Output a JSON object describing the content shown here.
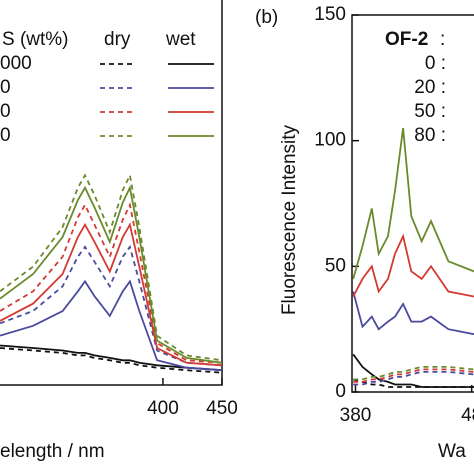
{
  "chart_data": [
    {
      "type": "line",
      "x": [
        262,
        290,
        315,
        328,
        334,
        342,
        355,
        366,
        372,
        380,
        395,
        420,
        450
      ],
      "xlim": [
        262,
        450
      ],
      "ylim": [
        0,
        150
      ],
      "xticks": [
        400,
        450
      ],
      "x_label": "elength / nm",
      "legend": {
        "header": "S (wt%)",
        "columns": [
          "dry",
          "wet"
        ],
        "rows": [
          "000",
          "0",
          "0",
          "0"
        ]
      },
      "series": [
        {
          "color": "#111111",
          "dashed": true,
          "values": [
            15,
            14,
            13,
            12,
            12,
            11,
            10,
            9,
            9,
            8,
            7,
            6,
            5
          ]
        },
        {
          "color": "#111111",
          "dashed": false,
          "values": [
            16,
            15,
            14,
            13,
            13,
            12,
            11,
            10,
            10,
            9,
            8,
            7,
            6
          ]
        },
        {
          "color": "#4a4a9e",
          "dashed": true,
          "values": [
            25,
            30,
            40,
            52,
            56,
            50,
            40,
            52,
            56,
            42,
            14,
            9,
            8
          ]
        },
        {
          "color": "#4a4a9e",
          "dashed": false,
          "values": [
            20,
            24,
            30,
            38,
            42,
            36,
            28,
            38,
            42,
            30,
            10,
            7,
            6
          ]
        },
        {
          "color": "#d33a32",
          "dashed": true,
          "values": [
            30,
            38,
            52,
            68,
            73,
            65,
            52,
            67,
            73,
            54,
            17,
            10,
            9
          ]
        },
        {
          "color": "#d33a32",
          "dashed": false,
          "values": [
            26,
            33,
            45,
            60,
            65,
            58,
            46,
            60,
            65,
            48,
            15,
            9,
            8
          ]
        },
        {
          "color": "#6b8a2c",
          "dashed": true,
          "values": [
            38,
            48,
            64,
            80,
            85,
            77,
            62,
            79,
            85,
            64,
            20,
            12,
            10
          ]
        },
        {
          "color": "#6b8a2c",
          "dashed": false,
          "values": [
            35,
            45,
            60,
            75,
            80,
            72,
            58,
            74,
            80,
            60,
            18,
            11,
            9
          ]
        }
      ]
    },
    {
      "type": "line",
      "panel_label": "(b)",
      "x": [
        378,
        386,
        394,
        400,
        408,
        414,
        421,
        428,
        437,
        445,
        460,
        482
      ],
      "xlim": [
        377,
        482
      ],
      "ylim": [
        0,
        150
      ],
      "xticks": [
        380,
        {
          "value": 480,
          "label": "48"
        }
      ],
      "yticks": [
        0,
        50,
        100,
        150
      ],
      "x_label": "Wa",
      "y_label": "Fluorescence Intensity",
      "legend": {
        "header": "OF-2",
        "separator": ":",
        "rows": [
          "0 :",
          "20 :",
          "50 :",
          "80 :"
        ]
      },
      "series": [
        {
          "color": "#111111",
          "dashed": true,
          "values": [
            5,
            4,
            3,
            3,
            2,
            2,
            2,
            2,
            2,
            2,
            2,
            2
          ]
        },
        {
          "color": "#111111",
          "dashed": false,
          "values": [
            15,
            10,
            7,
            5,
            4,
            3,
            3,
            3,
            2,
            2,
            2,
            2
          ]
        },
        {
          "color": "#4a4a9e",
          "dashed": true,
          "values": [
            3,
            3,
            4,
            4,
            5,
            6,
            6,
            7,
            8,
            8,
            8,
            7
          ]
        },
        {
          "color": "#4a4a9e",
          "dashed": false,
          "values": [
            40,
            26,
            30,
            25,
            28,
            30,
            35,
            28,
            28,
            30,
            25,
            23
          ]
        },
        {
          "color": "#d33a32",
          "dashed": true,
          "values": [
            4,
            4,
            5,
            5,
            6,
            7,
            7,
            8,
            9,
            9,
            9,
            8
          ]
        },
        {
          "color": "#d33a32",
          "dashed": false,
          "values": [
            38,
            45,
            50,
            40,
            45,
            55,
            62,
            48,
            45,
            50,
            40,
            38
          ]
        },
        {
          "color": "#6b8a2c",
          "dashed": true,
          "values": [
            5,
            5,
            6,
            6,
            7,
            8,
            8,
            9,
            10,
            10,
            10,
            9
          ]
        },
        {
          "color": "#6b8a2c",
          "dashed": false,
          "values": [
            45,
            58,
            73,
            55,
            62,
            80,
            105,
            70,
            60,
            68,
            52,
            48
          ]
        }
      ]
    }
  ]
}
